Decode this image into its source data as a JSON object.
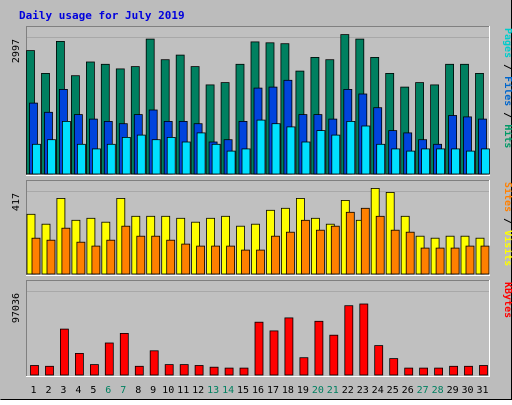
{
  "chart_data": {
    "type": "bar",
    "title": "Daily usage for July 2019",
    "categories": [
      "1",
      "2",
      "3",
      "4",
      "5",
      "6",
      "7",
      "8",
      "9",
      "10",
      "11",
      "12",
      "13",
      "14",
      "15",
      "16",
      "17",
      "18",
      "19",
      "20",
      "21",
      "22",
      "23",
      "24",
      "25",
      "26",
      "27",
      "28",
      "29",
      "30",
      "31"
    ],
    "weekend_days": [
      "6",
      "7",
      "13",
      "14",
      "20",
      "21",
      "27",
      "28"
    ],
    "panels": [
      {
        "id": "hits",
        "ylim": [
          0,
          2997
        ],
        "max_label": "2997",
        "legend": [
          {
            "text": "Pages",
            "color": "#00cccc"
          },
          {
            "text": " / ",
            "color": "#000000"
          },
          {
            "text": "Files",
            "color": "#0066cc"
          },
          {
            "text": " / ",
            "color": "#000000"
          },
          {
            "text": "Hits",
            "color": "#009966"
          }
        ],
        "series": [
          {
            "name": "Hits",
            "color": "#008060",
            "values": [
              2700,
              2200,
              2900,
              2150,
              2450,
              2400,
              2300,
              2350,
              2950,
              2500,
              2600,
              2350,
              1950,
              2000,
              2400,
              2890,
              2870,
              2850,
              2250,
              2550,
              2500,
              3050,
              2950,
              2550,
              2200,
              1900,
              2000,
              1950,
              2400,
              2400,
              2200
            ]
          },
          {
            "name": "Files",
            "color": "#0044dd",
            "values": [
              1550,
              1350,
              1850,
              1300,
              1200,
              1150,
              1100,
              1300,
              1400,
              1150,
              1150,
              1100,
              700,
              750,
              1150,
              1880,
              1900,
              2050,
              1300,
              1300,
              1200,
              1850,
              1750,
              1450,
              950,
              900,
              750,
              650,
              1280,
              1250,
              1200
            ]
          },
          {
            "name": "Pages",
            "color": "#00e0ff",
            "values": [
              650,
              750,
              1150,
              650,
              550,
              650,
              800,
              850,
              750,
              800,
              700,
              900,
              650,
              500,
              550,
              1180,
              1100,
              1030,
              700,
              950,
              850,
              1150,
              1050,
              650,
              550,
              500,
              550,
              550,
              550,
              500,
              550
            ]
          }
        ]
      },
      {
        "id": "visits",
        "ylim": [
          0,
          417
        ],
        "max_label": "417",
        "legend": [
          {
            "text": "Sites",
            "color": "#ff8000"
          },
          {
            "text": " / ",
            "color": "#000000"
          },
          {
            "text": "Visits",
            "color": "#ffff00"
          }
        ],
        "series": [
          {
            "name": "Visits",
            "color": "#ffff00",
            "values": [
              300,
              250,
              380,
              270,
              280,
              260,
              380,
              290,
              290,
              290,
              280,
              260,
              280,
              290,
              240,
              250,
              320,
              330,
              380,
              280,
              250,
              370,
              270,
              430,
              410,
              290,
              190,
              180,
              190,
              190,
              180
            ]
          },
          {
            "name": "Sites",
            "color": "#ff8000",
            "values": [
              180,
              170,
              230,
              160,
              140,
              170,
              240,
              190,
              190,
              170,
              150,
              140,
              140,
              140,
              120,
              120,
              190,
              210,
              270,
              220,
              240,
              310,
              330,
              290,
              220,
              210,
              130,
              130,
              130,
              140,
              140
            ]
          }
        ]
      },
      {
        "id": "kbytes",
        "ylim": [
          0,
          97036
        ],
        "max_label": "97036",
        "legend": [
          {
            "text": "KBytes",
            "color": "#ff0000"
          }
        ],
        "series": [
          {
            "name": "KBytes",
            "color": "#ff0000",
            "values": [
              11000,
              10000,
              53000,
              25000,
              12000,
              37000,
              48000,
              10000,
              28000,
              12000,
              12000,
              11000,
              9000,
              8000,
              8000,
              61000,
              51000,
              66000,
              20000,
              62000,
              46000,
              80000,
              82000,
              34000,
              19000,
              8000,
              8000,
              8000,
              10000,
              10000,
              11000
            ]
          }
        ]
      }
    ]
  },
  "colors": {
    "outer_bg": "#bcbcbc",
    "panel_bg": "#c0c0c0",
    "title": "#0000dd",
    "weekday_label": "#000000",
    "weekend_label": "#008060",
    "frame_dark": "#808080",
    "frame_light": "#ffffff"
  }
}
